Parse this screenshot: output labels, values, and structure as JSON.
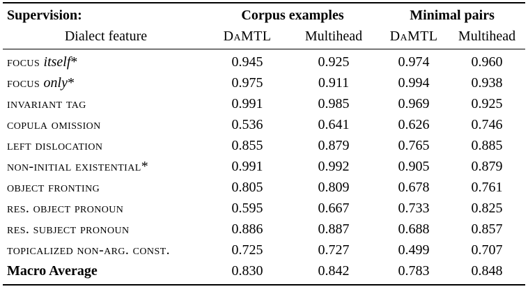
{
  "table": {
    "header": {
      "supervision": "Supervision:",
      "dialect_feature": "Dialect feature",
      "group1": "Corpus examples",
      "group2": "Minimal pairs",
      "sub1": "DaMTL",
      "sub2": "Multihead",
      "sub3": "DaMTL",
      "sub4": "Multihead"
    },
    "rows": [
      {
        "parts": [
          {
            "text": "focus ",
            "cls": "sc"
          },
          {
            "text": "itself",
            "cls": "it"
          },
          {
            "text": "*",
            "cls": "plain"
          }
        ],
        "values": [
          "0.945",
          "0.925",
          "0.974",
          "0.960"
        ]
      },
      {
        "parts": [
          {
            "text": "focus ",
            "cls": "sc"
          },
          {
            "text": "only",
            "cls": "it"
          },
          {
            "text": "*",
            "cls": "plain"
          }
        ],
        "values": [
          "0.975",
          "0.911",
          "0.994",
          "0.938"
        ]
      },
      {
        "parts": [
          {
            "text": "invariant tag",
            "cls": "sc"
          }
        ],
        "values": [
          "0.991",
          "0.985",
          "0.969",
          "0.925"
        ]
      },
      {
        "parts": [
          {
            "text": "copula omission",
            "cls": "sc"
          }
        ],
        "values": [
          "0.536",
          "0.641",
          "0.626",
          "0.746"
        ]
      },
      {
        "parts": [
          {
            "text": "left dislocation",
            "cls": "sc"
          }
        ],
        "values": [
          "0.855",
          "0.879",
          "0.765",
          "0.885"
        ]
      },
      {
        "parts": [
          {
            "text": "non-initial existential",
            "cls": "sc"
          },
          {
            "text": "*",
            "cls": "plain"
          }
        ],
        "values": [
          "0.991",
          "0.992",
          "0.905",
          "0.879"
        ]
      },
      {
        "parts": [
          {
            "text": "object fronting",
            "cls": "sc"
          }
        ],
        "values": [
          "0.805",
          "0.809",
          "0.678",
          "0.761"
        ]
      },
      {
        "parts": [
          {
            "text": "res. object pronoun",
            "cls": "sc"
          }
        ],
        "values": [
          "0.595",
          "0.667",
          "0.733",
          "0.825"
        ]
      },
      {
        "parts": [
          {
            "text": "res. subject pronoun",
            "cls": "sc"
          }
        ],
        "values": [
          "0.886",
          "0.887",
          "0.688",
          "0.857"
        ]
      },
      {
        "parts": [
          {
            "text": "topicalized non-arg. const.",
            "cls": "sc"
          }
        ],
        "values": [
          "0.725",
          "0.727",
          "0.499",
          "0.707"
        ]
      },
      {
        "parts": [
          {
            "text": "Macro Average",
            "cls": "bold"
          }
        ],
        "values": [
          "0.830",
          "0.842",
          "0.783",
          "0.848"
        ]
      }
    ]
  }
}
